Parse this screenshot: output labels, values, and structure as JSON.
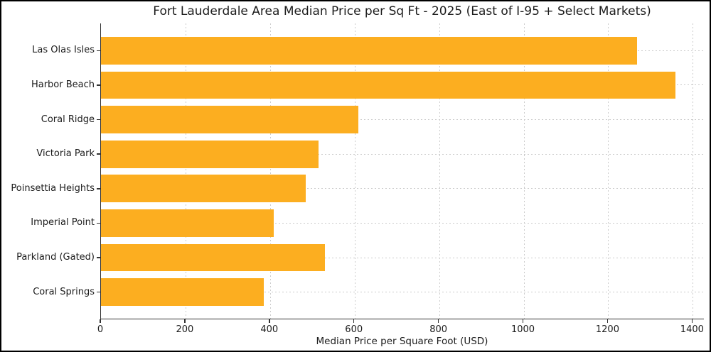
{
  "chart_data": {
    "type": "bar",
    "orientation": "horizontal",
    "title": "Fort Lauderdale Area Median Price per Sq Ft - 2025 (East of I-95 + Select Markets)",
    "xlabel": "Median Price per Square Foot (USD)",
    "ylabel": "",
    "categories": [
      "Las Olas Isles",
      "Harbor Beach",
      "Coral Ridge",
      "Victoria Park",
      "Poinsettia Heights",
      "Imperial Point",
      "Parkland (Gated)",
      "Coral Springs"
    ],
    "values": [
      1270,
      1360,
      610,
      515,
      485,
      410,
      530,
      385
    ],
    "xticks": [
      0,
      200,
      400,
      600,
      800,
      1000,
      1200,
      1400
    ],
    "xlim": [
      0,
      1428
    ],
    "grid": true,
    "grid_style": "dotted",
    "legend": "none",
    "bar_color": "#FCAE20",
    "grid_color": "#cbcbcb",
    "axis_color": "#333333",
    "text_color": "#1c1c1c",
    "background_color": "#ffffff"
  }
}
